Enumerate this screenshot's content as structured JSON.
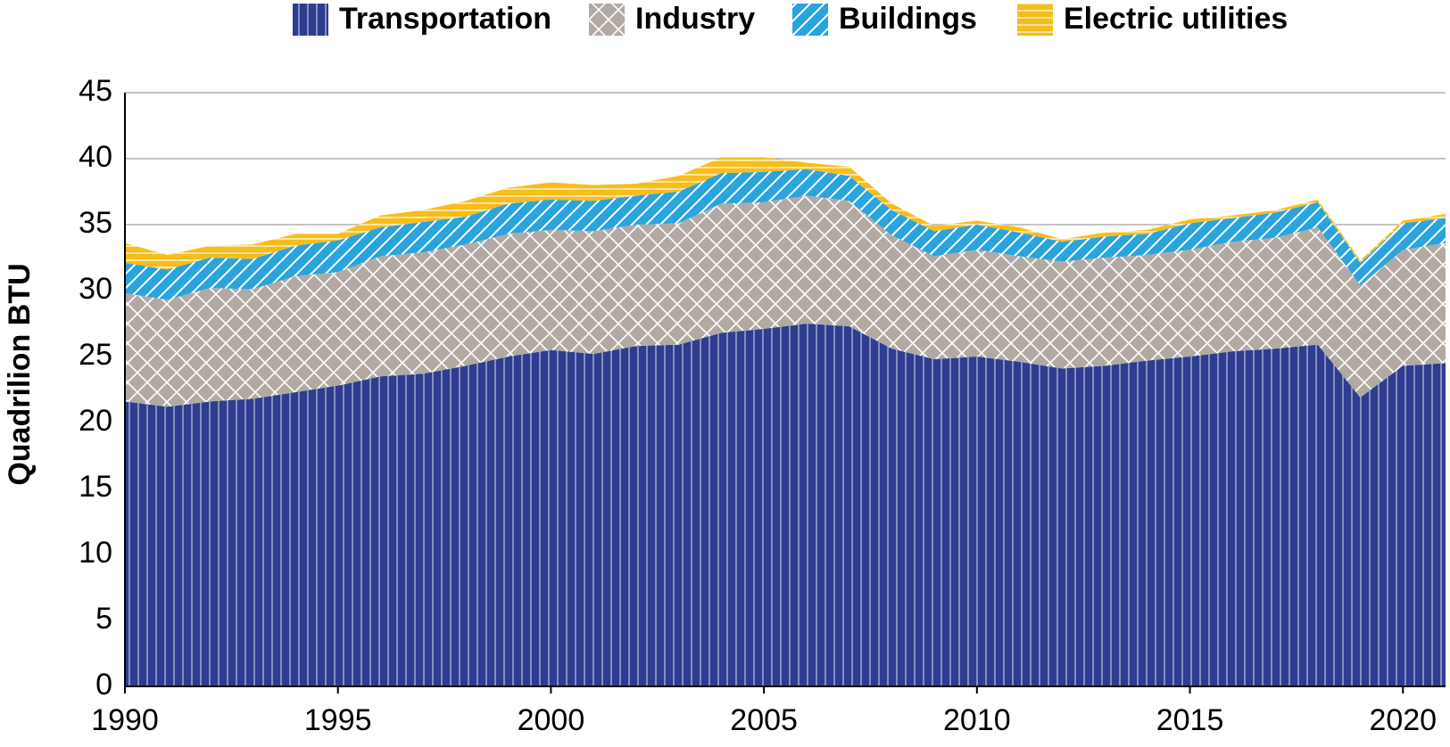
{
  "chart_data": {
    "type": "stacked-area",
    "y_label": "Quadrilion BTU",
    "x": [
      1990,
      1991,
      1992,
      1993,
      1994,
      1995,
      1996,
      1997,
      1998,
      1999,
      2000,
      2001,
      2002,
      2003,
      2004,
      2005,
      2006,
      2007,
      2008,
      2009,
      2010,
      2011,
      2012,
      2013,
      2014,
      2015,
      2016,
      2017,
      2018,
      2019,
      2020,
      2021
    ],
    "xlim": [
      1990,
      2021
    ],
    "xticks": [
      1990,
      1995,
      2000,
      2005,
      2010,
      2015,
      2020
    ],
    "ylim": [
      0,
      45
    ],
    "yticks": [
      0,
      5,
      10,
      15,
      20,
      25,
      30,
      35,
      40,
      45
    ],
    "grid": true,
    "legend": "top",
    "series": [
      {
        "name": "Transportation",
        "color": "#2e3d8f",
        "values": [
          21.6,
          21.2,
          21.6,
          21.8,
          22.3,
          22.8,
          23.5,
          23.7,
          24.3,
          25.0,
          25.5,
          25.2,
          25.8,
          25.9,
          26.8,
          27.1,
          27.5,
          27.3,
          25.6,
          24.8,
          25.0,
          24.6,
          24.1,
          24.3,
          24.7,
          25.0,
          25.4,
          25.6,
          25.9,
          21.9,
          24.3,
          24.5
        ]
      },
      {
        "name": "Industry",
        "color": "#b3a9a3",
        "values": [
          8.2,
          8.1,
          8.6,
          8.3,
          8.8,
          8.6,
          9.1,
          9.2,
          9.2,
          9.3,
          9.1,
          9.3,
          9.2,
          9.2,
          9.8,
          9.6,
          9.7,
          9.5,
          8.6,
          7.8,
          8.1,
          8.0,
          8.1,
          8.2,
          8.0,
          8.1,
          8.3,
          8.4,
          8.9,
          8.5,
          8.8,
          9.1
        ]
      },
      {
        "name": "Buildings",
        "color": "#2aa4de",
        "values": [
          2.3,
          2.3,
          2.3,
          2.3,
          2.3,
          2.4,
          2.2,
          2.3,
          2.1,
          2.3,
          2.3,
          2.3,
          2.2,
          2.4,
          2.3,
          2.3,
          2.0,
          1.9,
          1.9,
          1.9,
          1.9,
          1.8,
          1.5,
          1.6,
          1.6,
          2.0,
          1.8,
          1.9,
          1.9,
          1.7,
          2.0,
          1.9
        ]
      },
      {
        "name": "Electric utilities",
        "color": "#f7bd1b",
        "values": [
          1.5,
          1.1,
          0.9,
          1.1,
          0.9,
          0.5,
          0.9,
          0.9,
          1.2,
          1.2,
          1.3,
          1.2,
          0.9,
          1.2,
          1.2,
          1.1,
          0.5,
          0.7,
          0.5,
          0.4,
          0.3,
          0.4,
          0.2,
          0.3,
          0.3,
          0.3,
          0.2,
          0.2,
          0.2,
          0.2,
          0.2,
          0.3
        ]
      }
    ]
  }
}
